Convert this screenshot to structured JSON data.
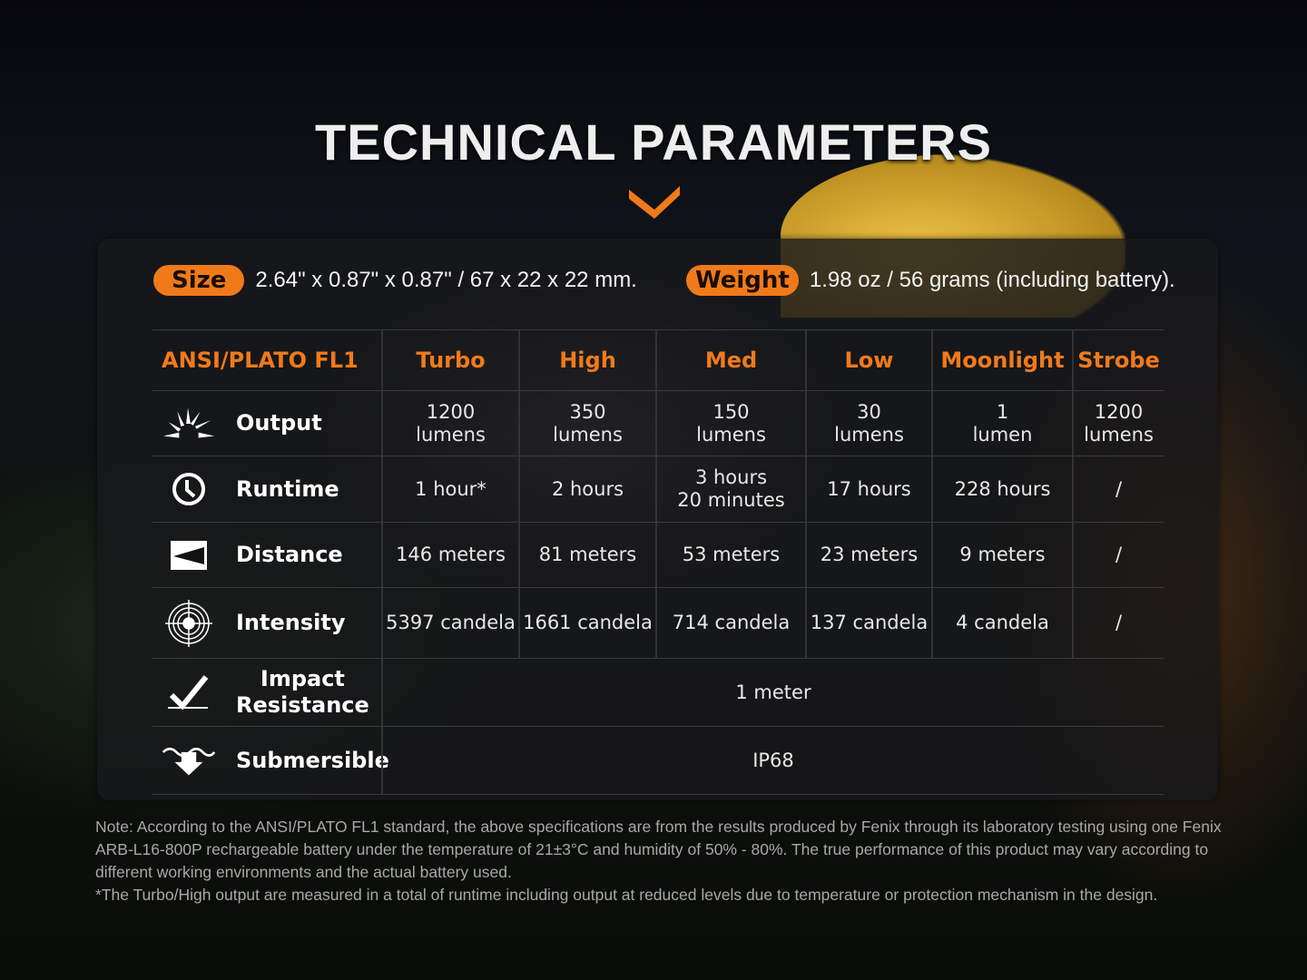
{
  "title": "TECHNICAL PARAMETERS",
  "accent": "#f07a1a",
  "size": {
    "label": "Size",
    "value": "2.64\" x 0.87\" x 0.87\" / 67 x 22 x 22 mm."
  },
  "weight": {
    "label": "Weight",
    "value": "1.98 oz / 56 grams (including battery)."
  },
  "table": {
    "headers": [
      "ANSI/PLATO FL1",
      "Turbo",
      "High",
      "Med",
      "Low",
      "Moonlight",
      "Strobe"
    ],
    "rows": [
      {
        "label": "Output",
        "icon": "sunburst-icon",
        "cells": [
          "1200\nlumens",
          "350\nlumens",
          "150\nlumens",
          "30\nlumens",
          "1\nlumen",
          "1200\nlumens"
        ]
      },
      {
        "label": "Runtime",
        "icon": "clock-icon",
        "cells": [
          "1 hour*",
          "2 hours",
          "3 hours\n20 minutes",
          "17 hours",
          "228 hours",
          "/"
        ]
      },
      {
        "label": "Distance",
        "icon": "beam-distance-icon",
        "cells": [
          "146 meters",
          "81 meters",
          "53 meters",
          "23 meters",
          "9 meters",
          "/"
        ]
      },
      {
        "label": "Intensity",
        "icon": "target-icon",
        "cells": [
          "5397 candela",
          "1661 candela",
          "714 candela",
          "137 candela",
          "4 candela",
          "/"
        ]
      }
    ],
    "impact": {
      "label": "Impact\nResistance",
      "icon": "impact-check-icon",
      "value": "1 meter"
    },
    "submersible": {
      "label": "Submersible",
      "icon": "water-arrow-icon",
      "value": "IP68"
    }
  },
  "note": [
    "Note: According to the ANSI/PLATO FL1 standard, the above specifications are from the results produced by Fenix through its laboratory testing using one Fenix ARB-L16-800P rechargeable battery under the temperature of 21±3°C and humidity of 50% - 80%. The true performance of this product may vary according to different working environments and the actual battery used.",
    "*The Turbo/High output are measured in a total of runtime including output at reduced levels due to temperature or protection mechanism in the design."
  ]
}
